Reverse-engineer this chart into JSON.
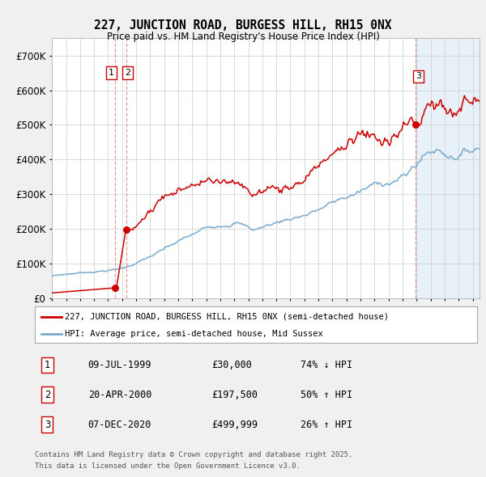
{
  "title": "227, JUNCTION ROAD, BURGESS HILL, RH15 0NX",
  "subtitle": "Price paid vs. HM Land Registry's House Price Index (HPI)",
  "red_label": "227, JUNCTION ROAD, BURGESS HILL, RH15 0NX (semi-detached house)",
  "blue_label": "HPI: Average price, semi-detached house, Mid Sussex",
  "transactions": [
    {
      "num": 1,
      "date": "09-JUL-1999",
      "year": 1999.52,
      "price": 30000,
      "pct": "74%",
      "dir": "↓"
    },
    {
      "num": 2,
      "date": "20-APR-2000",
      "year": 2000.3,
      "price": 197500,
      "pct": "50%",
      "dir": "↑"
    },
    {
      "num": 3,
      "date": "07-DEC-2020",
      "year": 2020.92,
      "price": 499999,
      "pct": "26%",
      "dir": "↑"
    }
  ],
  "footer1": "Contains HM Land Registry data © Crown copyright and database right 2025.",
  "footer2": "This data is licensed under the Open Government Licence v3.0.",
  "ylim": [
    0,
    750000
  ],
  "xlim": [
    1995.0,
    2025.5
  ],
  "background": "#f0f0f0",
  "plot_bg": "#ffffff",
  "plot_bg_right": "#e8f0f8",
  "red_color": "#cc0000",
  "blue_color": "#7aaacc",
  "grid_color": "#cccccc",
  "vline_color": "#dd8888"
}
